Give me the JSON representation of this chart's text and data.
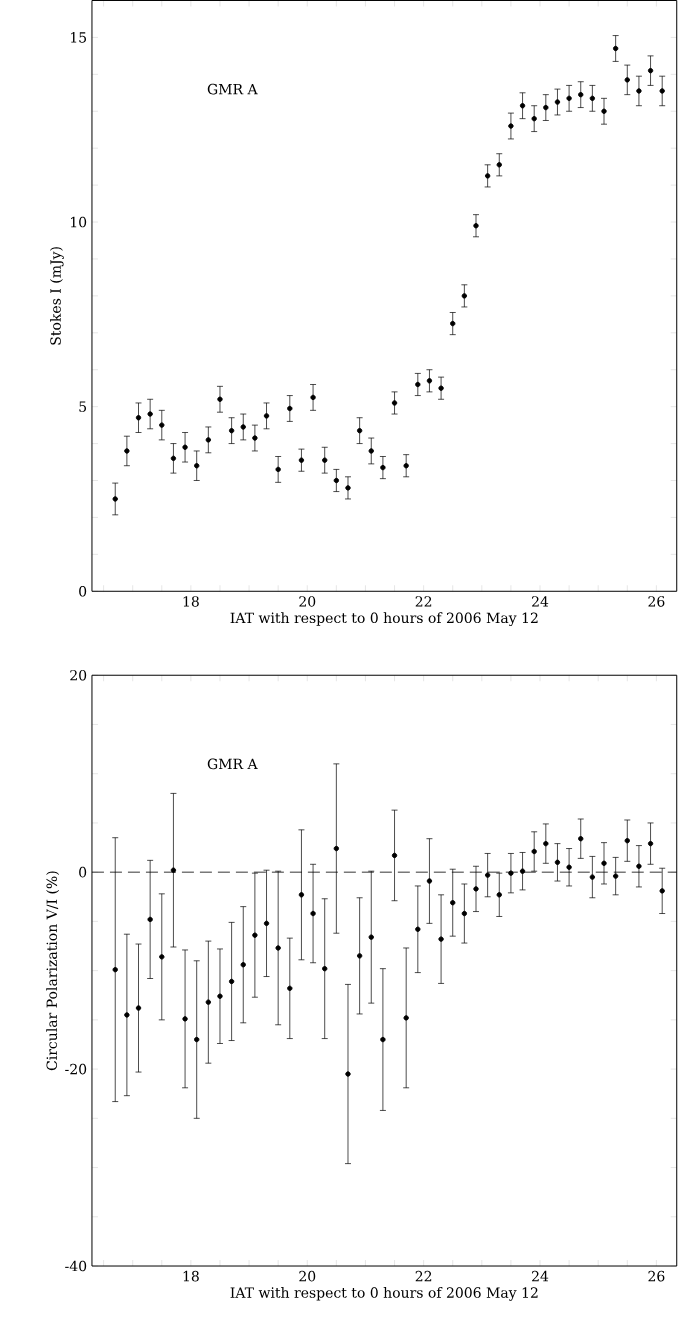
{
  "chart_data": [
    {
      "type": "scatter",
      "ylabel": "Stokes I (mJy)",
      "xlabel": "IAT with respect to 0 hours of 2006 May 12",
      "annotations": [
        "GMR A"
      ],
      "color": "#000000",
      "marker": "circle",
      "x": [
        16.7,
        16.9,
        17.1,
        17.3,
        17.5,
        17.7,
        17.9,
        18.1,
        18.3,
        18.5,
        18.7,
        18.9,
        19.1,
        19.3,
        19.5,
        19.7,
        19.9,
        20.1,
        20.3,
        20.5,
        20.7,
        20.9,
        21.1,
        21.3,
        21.5,
        21.7,
        21.9,
        22.1,
        22.3,
        22.5,
        22.7,
        22.9,
        23.1,
        23.3,
        23.5,
        23.7,
        23.9,
        24.1,
        24.3,
        24.5,
        24.7,
        24.9,
        25.1,
        25.3,
        25.5,
        25.7,
        25.9,
        26.1
      ],
      "values": [
        2.5,
        3.8,
        4.7,
        4.8,
        4.5,
        3.6,
        3.9,
        3.4,
        4.1,
        5.2,
        4.35,
        4.45,
        4.15,
        4.75,
        3.3,
        4.95,
        3.55,
        5.25,
        3.55,
        3.0,
        2.8,
        4.35,
        3.8,
        3.35,
        5.1,
        3.4,
        5.6,
        5.7,
        5.5,
        7.25,
        8.0,
        9.9,
        11.25,
        11.55,
        12.6,
        13.15,
        12.8,
        13.1,
        13.25,
        13.35,
        13.45,
        13.35,
        13.0,
        14.7,
        13.85,
        13.55,
        14.1,
        13.55
      ],
      "errors": [
        0.43,
        0.4,
        0.4,
        0.4,
        0.4,
        0.4,
        0.4,
        0.4,
        0.35,
        0.35,
        0.35,
        0.35,
        0.35,
        0.35,
        0.35,
        0.35,
        0.3,
        0.35,
        0.35,
        0.3,
        0.3,
        0.35,
        0.35,
        0.3,
        0.3,
        0.3,
        0.3,
        0.3,
        0.3,
        0.3,
        0.3,
        0.3,
        0.3,
        0.3,
        0.35,
        0.35,
        0.35,
        0.35,
        0.35,
        0.35,
        0.35,
        0.35,
        0.35,
        0.35,
        0.4,
        0.4,
        0.4,
        0.4
      ],
      "xlim": [
        16.3,
        26.35
      ],
      "ylim": [
        0,
        16
      ],
      "xticks": [
        {
          "value": 16.5,
          "label": null
        },
        {
          "value": 17,
          "label": null
        },
        {
          "value": 17.5,
          "label": null
        },
        18,
        {
          "value": 18.5,
          "label": null
        },
        {
          "value": 19,
          "label": null
        },
        {
          "value": 19.5,
          "label": null
        },
        20,
        {
          "value": 20.5,
          "label": null
        },
        {
          "value": 21,
          "label": null
        },
        {
          "value": 21.5,
          "label": null
        },
        22,
        {
          "value": 22.5,
          "label": null
        },
        {
          "value": 23,
          "label": null
        },
        {
          "value": 23.5,
          "label": null
        },
        24,
        {
          "value": 24.5,
          "label": null
        },
        {
          "value": 25,
          "label": null
        },
        {
          "value": 25.5,
          "label": null
        },
        26
      ],
      "yticks": [
        0,
        {
          "value": 1,
          "label": null
        },
        {
          "value": 2,
          "label": null
        },
        {
          "value": 3,
          "label": null
        },
        {
          "value": 4,
          "label": null
        },
        5,
        {
          "value": 6,
          "label": null
        },
        {
          "value": 7,
          "label": null
        },
        {
          "value": 8,
          "label": null
        },
        {
          "value": 9,
          "label": null
        },
        10,
        {
          "value": 11,
          "label": null
        },
        {
          "value": 12,
          "label": null
        },
        {
          "value": 13,
          "label": null
        },
        {
          "value": 14,
          "label": null
        },
        15
      ]
    },
    {
      "type": "scatter",
      "ylabel": "Circular Polarization V/I (%)",
      "xlabel": "IAT with respect to 0 hours of 2006 May 12",
      "annotations": [
        "GMR A"
      ],
      "color": "#000000",
      "marker": "circle",
      "x": [
        16.7,
        16.9,
        17.1,
        17.3,
        17.5,
        17.7,
        17.9,
        18.1,
        18.3,
        18.5,
        18.7,
        18.9,
        19.1,
        19.3,
        19.5,
        19.7,
        19.9,
        20.1,
        20.3,
        20.5,
        20.7,
        20.9,
        21.1,
        21.3,
        21.5,
        21.7,
        21.9,
        22.1,
        22.3,
        22.5,
        22.7,
        22.9,
        23.1,
        23.3,
        23.5,
        23.7,
        23.9,
        24.1,
        24.3,
        24.5,
        24.7,
        24.9,
        25.1,
        25.3,
        25.5,
        25.7,
        25.9,
        26.1
      ],
      "values": [
        -9.9,
        -14.5,
        -13.8,
        -4.8,
        -8.6,
        0.2,
        -14.9,
        -17,
        -13.2,
        -12.6,
        -11.1,
        -9.4,
        -6.4,
        -5.2,
        -7.7,
        -11.8,
        -2.3,
        -4.2,
        -9.8,
        2.4,
        -20.5,
        -8.5,
        -6.6,
        -17,
        1.7,
        -14.8,
        -5.8,
        -0.9,
        -6.8,
        -3.1,
        -4.2,
        -1.7,
        -0.3,
        -2.3,
        -0.1,
        0.1,
        2.1,
        2.9,
        1.0,
        0.5,
        3.4,
        -0.5,
        0.9,
        -0.4,
        3.2,
        0.6,
        2.9,
        -1.9
      ],
      "errors": [
        13.4,
        8.2,
        6.5,
        6,
        6.4,
        7.8,
        7,
        8,
        6.2,
        4.8,
        6,
        5.9,
        6.3,
        5.4,
        7.8,
        5.1,
        6.6,
        5,
        7.1,
        8.6,
        9.1,
        5.9,
        6.7,
        7.2,
        4.6,
        7.1,
        4.4,
        4.3,
        4.5,
        3.4,
        3,
        2.3,
        2.2,
        2.2,
        2,
        1.9,
        2,
        2,
        1.9,
        1.9,
        2,
        2.1,
        2.1,
        1.9,
        2.1,
        2.1,
        2.1,
        2.3
      ],
      "ref_lines": [
        {
          "axis": "y",
          "value": 0,
          "line_style": "dashed",
          "color": "#000000"
        }
      ],
      "xlim": [
        16.3,
        26.35
      ],
      "ylim": [
        -40,
        20
      ],
      "xticks": [
        {
          "value": 16.5,
          "label": null
        },
        {
          "value": 17,
          "label": null
        },
        {
          "value": 17.5,
          "label": null
        },
        18,
        {
          "value": 18.5,
          "label": null
        },
        {
          "value": 19,
          "label": null
        },
        {
          "value": 19.5,
          "label": null
        },
        20,
        {
          "value": 20.5,
          "label": null
        },
        {
          "value": 21,
          "label": null
        },
        {
          "value": 21.5,
          "label": null
        },
        22,
        {
          "value": 22.5,
          "label": null
        },
        {
          "value": 23,
          "label": null
        },
        {
          "value": 23.5,
          "label": null
        },
        24,
        {
          "value": 24.5,
          "label": null
        },
        {
          "value": 25,
          "label": null
        },
        {
          "value": 25.5,
          "label": null
        },
        26
      ],
      "yticks": [
        -40,
        {
          "value": -35,
          "label": null
        },
        {
          "value": -30,
          "label": null
        },
        {
          "value": -25,
          "label": null
        },
        -20,
        {
          "value": -15,
          "label": null
        },
        {
          "value": -10,
          "label": null
        },
        {
          "value": -5,
          "label": null
        },
        0,
        {
          "value": 5,
          "label": null
        },
        {
          "value": 10,
          "label": null
        },
        {
          "value": 15,
          "label": null
        },
        20
      ]
    }
  ]
}
